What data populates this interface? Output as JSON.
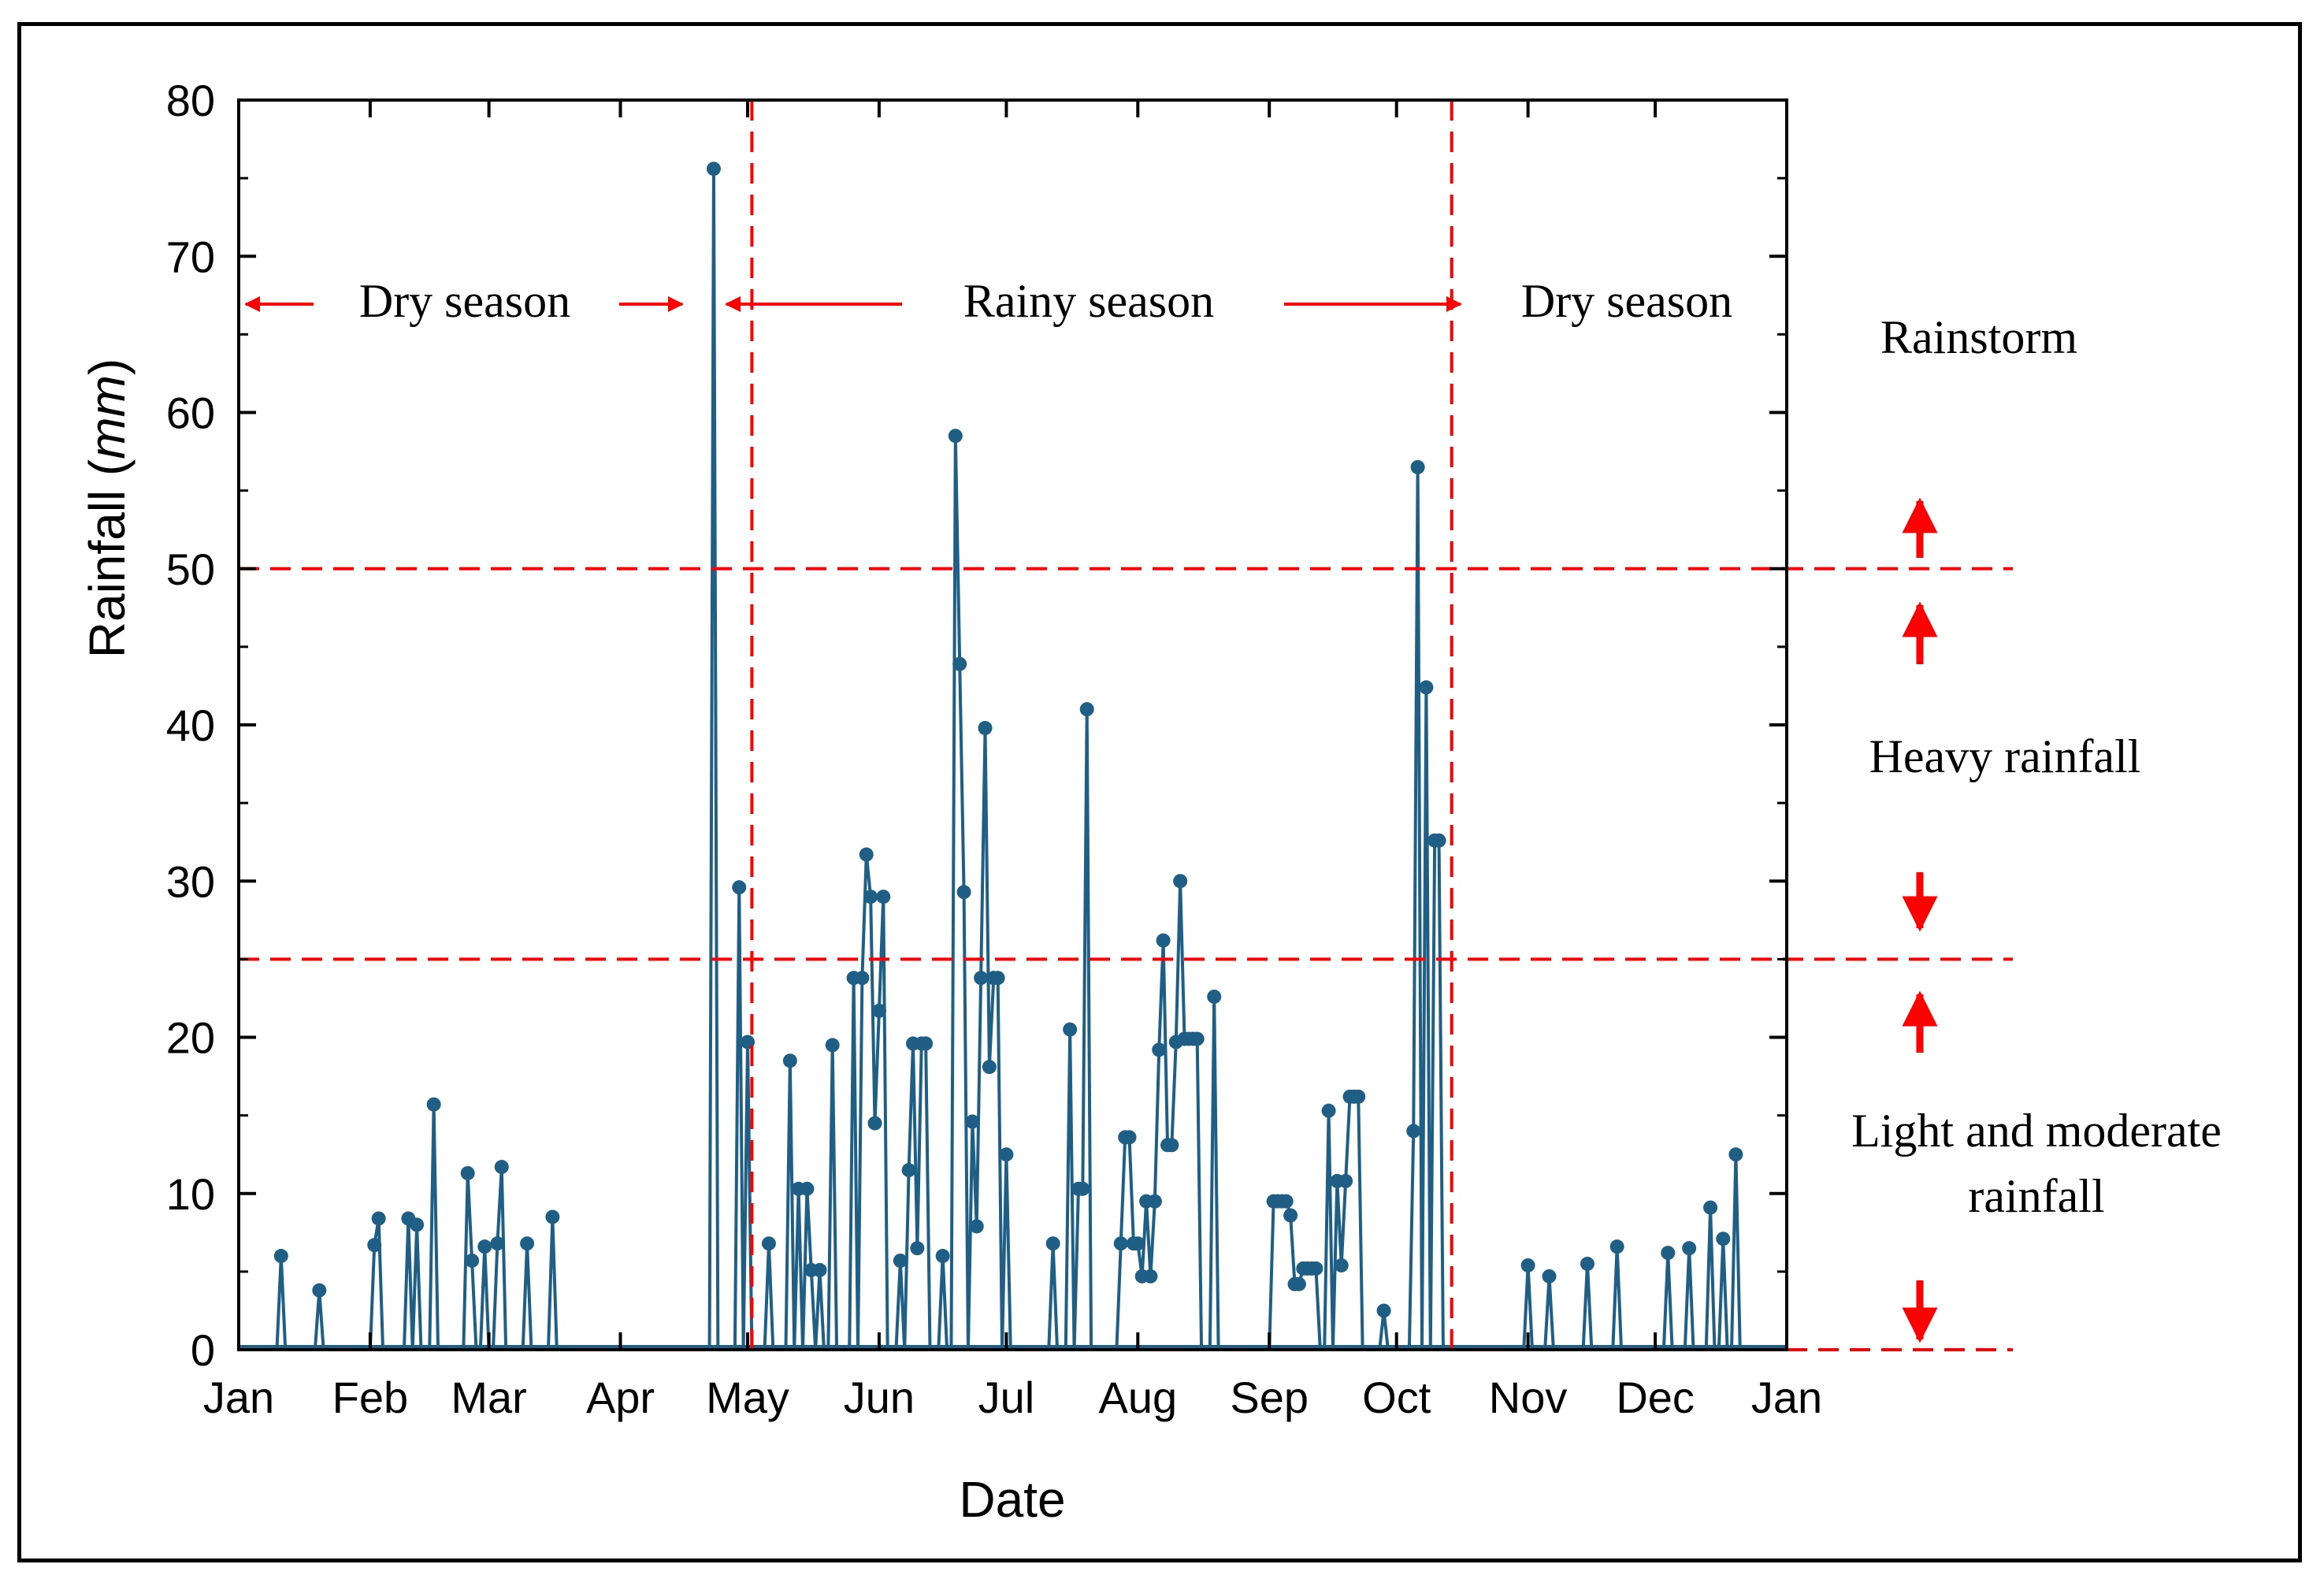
{
  "chart_data": {
    "type": "line",
    "xlabel": "Date",
    "ylabel_main": "Rainfall (",
    "ylabel_unit": "mm",
    "ylabel_close": ")",
    "ylim": [
      0,
      80
    ],
    "yticks": [
      0,
      10,
      20,
      30,
      40,
      50,
      60,
      70,
      80
    ],
    "xlim": [
      "Jan",
      "Jan"
    ],
    "xticks": [
      "Jan",
      "Feb",
      "Mar",
      "Apr",
      "May",
      "Jun",
      "Jul",
      "Aug",
      "Sep",
      "Oct",
      "Nov",
      "Dec",
      "Jan"
    ],
    "grid": false,
    "series_color": "#1f5f86",
    "guide_color": "#ff0000",
    "season_boundaries_day": [
      121,
      286
    ],
    "rainfall_thresholds": [
      25,
      50
    ],
    "season_labels": [
      "Dry season",
      "Rainy season",
      "Dry season"
    ],
    "category_labels": {
      "rainstorm": "Rainstorm",
      "heavy": "Heavy rainfall",
      "light_line1": "Light and moderate",
      "light_line2": "rainfall"
    },
    "points": [
      {
        "day": 10,
        "mm": 6.0
      },
      {
        "day": 19,
        "mm": 3.8
      },
      {
        "day": 32,
        "mm": 6.7
      },
      {
        "day": 33,
        "mm": 8.4
      },
      {
        "day": 40,
        "mm": 8.4
      },
      {
        "day": 42,
        "mm": 8.0
      },
      {
        "day": 46,
        "mm": 15.7
      },
      {
        "day": 54,
        "mm": 11.3
      },
      {
        "day": 55,
        "mm": 5.7
      },
      {
        "day": 58,
        "mm": 6.6
      },
      {
        "day": 61,
        "mm": 6.8
      },
      {
        "day": 62,
        "mm": 11.7
      },
      {
        "day": 68,
        "mm": 6.8
      },
      {
        "day": 74,
        "mm": 8.5
      },
      {
        "day": 112,
        "mm": 75.6
      },
      {
        "day": 118,
        "mm": 29.6
      },
      {
        "day": 120,
        "mm": 19.7
      },
      {
        "day": 125,
        "mm": 6.8
      },
      {
        "day": 130,
        "mm": 18.5
      },
      {
        "day": 132,
        "mm": 10.3
      },
      {
        "day": 134,
        "mm": 10.3
      },
      {
        "day": 135,
        "mm": 5.1
      },
      {
        "day": 137,
        "mm": 5.1
      },
      {
        "day": 140,
        "mm": 19.5
      },
      {
        "day": 145,
        "mm": 23.8
      },
      {
        "day": 147,
        "mm": 23.8
      },
      {
        "day": 148,
        "mm": 31.7
      },
      {
        "day": 149,
        "mm": 29.0
      },
      {
        "day": 150,
        "mm": 14.5
      },
      {
        "day": 151,
        "mm": 21.7
      },
      {
        "day": 152,
        "mm": 29.0
      },
      {
        "day": 156,
        "mm": 5.7
      },
      {
        "day": 158,
        "mm": 11.5
      },
      {
        "day": 159,
        "mm": 19.6
      },
      {
        "day": 160,
        "mm": 6.5
      },
      {
        "day": 161,
        "mm": 19.6
      },
      {
        "day": 162,
        "mm": 19.6
      },
      {
        "day": 166,
        "mm": 6.0
      },
      {
        "day": 169,
        "mm": 58.5
      },
      {
        "day": 170,
        "mm": 43.9
      },
      {
        "day": 171,
        "mm": 29.3
      },
      {
        "day": 173,
        "mm": 14.6
      },
      {
        "day": 174,
        "mm": 7.9
      },
      {
        "day": 175,
        "mm": 23.8
      },
      {
        "day": 176,
        "mm": 39.8
      },
      {
        "day": 177,
        "mm": 18.1
      },
      {
        "day": 178,
        "mm": 23.8
      },
      {
        "day": 179,
        "mm": 23.8
      },
      {
        "day": 181,
        "mm": 12.5
      },
      {
        "day": 192,
        "mm": 6.8
      },
      {
        "day": 196,
        "mm": 20.5
      },
      {
        "day": 198,
        "mm": 10.3
      },
      {
        "day": 199,
        "mm": 10.3
      },
      {
        "day": 200,
        "mm": 41.0
      },
      {
        "day": 208,
        "mm": 6.8
      },
      {
        "day": 209,
        "mm": 13.6
      },
      {
        "day": 210,
        "mm": 13.6
      },
      {
        "day": 211,
        "mm": 6.8
      },
      {
        "day": 212,
        "mm": 6.8
      },
      {
        "day": 213,
        "mm": 4.7
      },
      {
        "day": 214,
        "mm": 9.5
      },
      {
        "day": 215,
        "mm": 4.7
      },
      {
        "day": 216,
        "mm": 9.5
      },
      {
        "day": 217,
        "mm": 19.2
      },
      {
        "day": 218,
        "mm": 26.2
      },
      {
        "day": 219,
        "mm": 13.1
      },
      {
        "day": 220,
        "mm": 13.1
      },
      {
        "day": 221,
        "mm": 19.7
      },
      {
        "day": 222,
        "mm": 30.0
      },
      {
        "day": 223,
        "mm": 19.9
      },
      {
        "day": 224,
        "mm": 19.9
      },
      {
        "day": 225,
        "mm": 19.9
      },
      {
        "day": 226,
        "mm": 19.9
      },
      {
        "day": 230,
        "mm": 22.6
      },
      {
        "day": 244,
        "mm": 9.5
      },
      {
        "day": 245,
        "mm": 9.5
      },
      {
        "day": 246,
        "mm": 9.5
      },
      {
        "day": 247,
        "mm": 9.5
      },
      {
        "day": 248,
        "mm": 8.6
      },
      {
        "day": 249,
        "mm": 4.2
      },
      {
        "day": 250,
        "mm": 4.2
      },
      {
        "day": 251,
        "mm": 5.2
      },
      {
        "day": 252,
        "mm": 5.2
      },
      {
        "day": 253,
        "mm": 5.2
      },
      {
        "day": 254,
        "mm": 5.2
      },
      {
        "day": 257,
        "mm": 15.3
      },
      {
        "day": 259,
        "mm": 10.8
      },
      {
        "day": 260,
        "mm": 5.4
      },
      {
        "day": 261,
        "mm": 10.8
      },
      {
        "day": 262,
        "mm": 16.2
      },
      {
        "day": 263,
        "mm": 16.2
      },
      {
        "day": 264,
        "mm": 16.2
      },
      {
        "day": 270,
        "mm": 2.5
      },
      {
        "day": 277,
        "mm": 14.0
      },
      {
        "day": 278,
        "mm": 56.5
      },
      {
        "day": 280,
        "mm": 42.4
      },
      {
        "day": 282,
        "mm": 32.6
      },
      {
        "day": 283,
        "mm": 32.6
      },
      {
        "day": 304,
        "mm": 5.4
      },
      {
        "day": 309,
        "mm": 4.7
      },
      {
        "day": 318,
        "mm": 5.5
      },
      {
        "day": 325,
        "mm": 6.6
      },
      {
        "day": 337,
        "mm": 6.2
      },
      {
        "day": 342,
        "mm": 6.5
      },
      {
        "day": 347,
        "mm": 9.1
      },
      {
        "day": 350,
        "mm": 7.1
      },
      {
        "day": 353,
        "mm": 12.5
      }
    ]
  }
}
